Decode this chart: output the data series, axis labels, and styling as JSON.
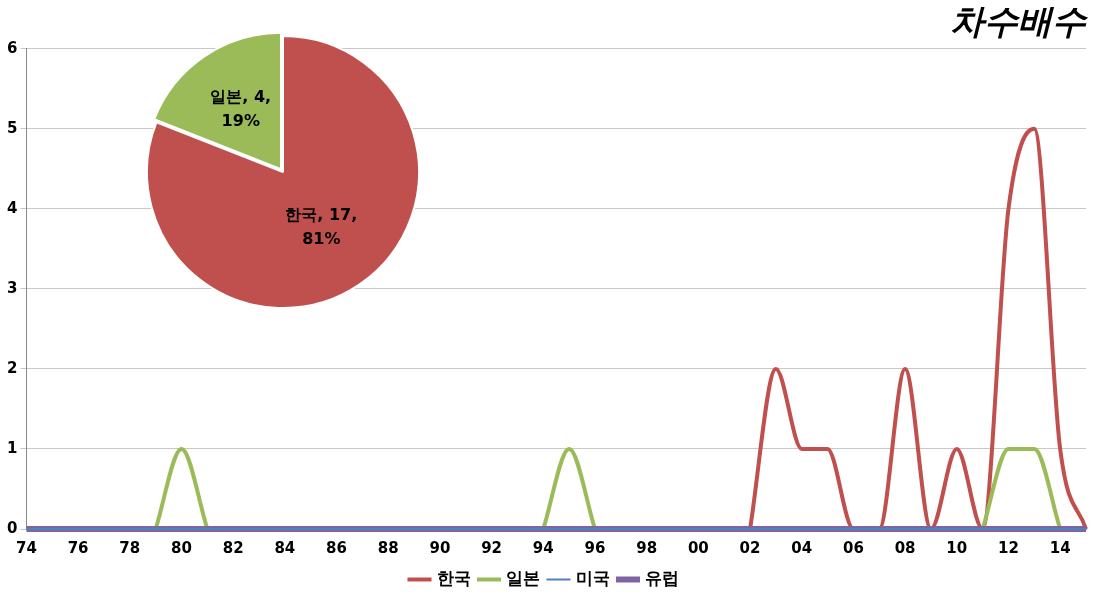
{
  "chart_data": [
    {
      "type": "line",
      "title": "차수배수",
      "categories": [
        "74",
        null,
        "76",
        null,
        "78",
        null,
        "80",
        null,
        "82",
        null,
        "84",
        null,
        "86",
        null,
        "88",
        null,
        "90",
        null,
        "92",
        null,
        "94",
        null,
        "96",
        null,
        "98",
        null,
        "00",
        null,
        "02",
        null,
        "04",
        null,
        "06",
        null,
        "08",
        null,
        "10",
        null,
        "12",
        null,
        "14",
        null
      ],
      "series": [
        {
          "name": "한국",
          "color": "#c0504d",
          "values": [
            null,
            null,
            null,
            null,
            null,
            null,
            null,
            null,
            null,
            null,
            null,
            null,
            null,
            null,
            null,
            null,
            null,
            null,
            null,
            null,
            null,
            null,
            null,
            null,
            null,
            null,
            null,
            null,
            0,
            2,
            1,
            1,
            0,
            0,
            2,
            0,
            1,
            0,
            4,
            5,
            1,
            0
          ]
        },
        {
          "name": "일본",
          "color": "#9bbb59",
          "values": [
            null,
            null,
            null,
            null,
            null,
            0,
            1,
            0,
            null,
            null,
            null,
            null,
            null,
            null,
            null,
            null,
            null,
            null,
            null,
            null,
            0,
            1,
            0,
            null,
            null,
            null,
            null,
            null,
            null,
            null,
            null,
            null,
            null,
            null,
            null,
            null,
            null,
            0,
            1,
            1,
            0,
            null
          ]
        },
        {
          "name": "미국",
          "color": "#4f81bd",
          "values": [
            0,
            0,
            0,
            0,
            0,
            0,
            0,
            0,
            0,
            0,
            0,
            0,
            0,
            0,
            0,
            0,
            0,
            0,
            0,
            0,
            0,
            0,
            0,
            0,
            0,
            0,
            0,
            0,
            0,
            0,
            0,
            0,
            0,
            0,
            0,
            0,
            0,
            0,
            0,
            0,
            0,
            0
          ]
        },
        {
          "name": "유럽",
          "color": "#8064a2",
          "values": [
            0,
            0,
            0,
            0,
            0,
            0,
            0,
            0,
            0,
            0,
            0,
            0,
            0,
            0,
            0,
            0,
            0,
            0,
            0,
            0,
            0,
            0,
            0,
            0,
            0,
            0,
            0,
            0,
            0,
            0,
            0,
            0,
            0,
            0,
            0,
            0,
            0,
            0,
            0,
            0,
            0,
            0
          ]
        }
      ],
      "ylim": [
        0,
        6
      ],
      "yticks": [
        0,
        1,
        2,
        3,
        4,
        5,
        6
      ],
      "grid": "y",
      "legend": "bottom",
      "marker": "none",
      "line_style": "solid"
    },
    {
      "type": "pie",
      "categories": [
        "한국",
        "일본"
      ],
      "values": [
        17,
        4
      ],
      "colors": [
        "#c0504d",
        "#9bbb59"
      ],
      "value_labels": [
        "17, 81%",
        "4, 19%"
      ]
    }
  ]
}
